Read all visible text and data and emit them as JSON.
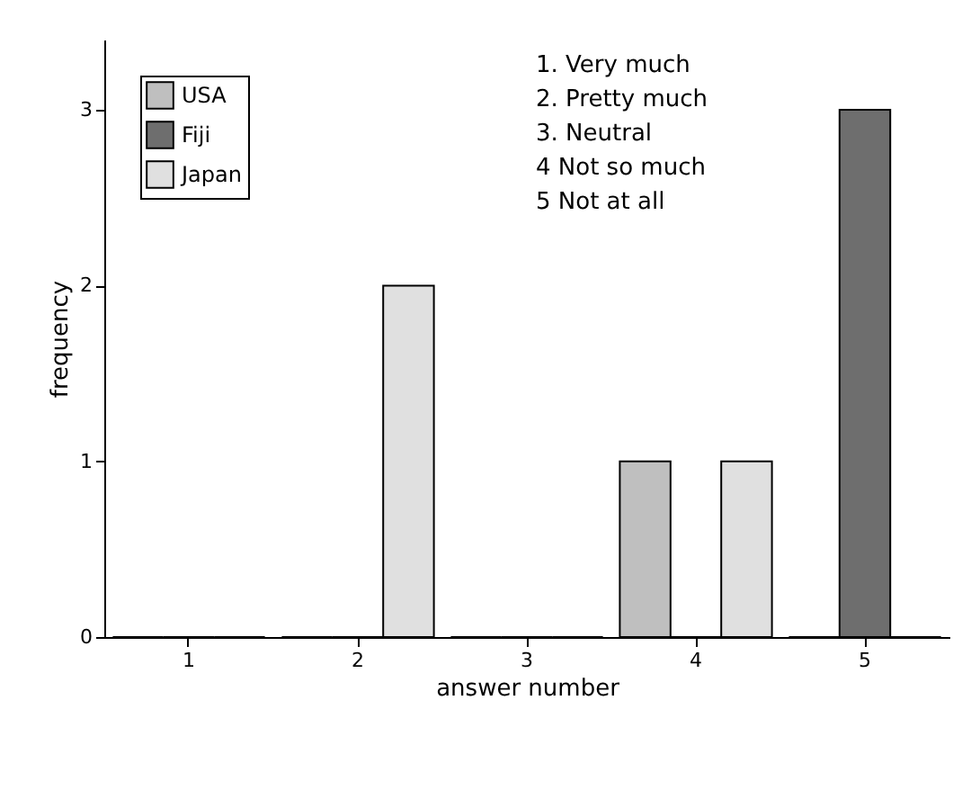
{
  "chart_data": {
    "type": "bar",
    "xlabel": "answer number",
    "ylabel": "frequency",
    "categories": [
      "1",
      "2",
      "3",
      "4",
      "5"
    ],
    "series": [
      {
        "name": "USA",
        "color": "#bfbfbf",
        "values": [
          0,
          0,
          0,
          1,
          0
        ]
      },
      {
        "name": "Fiji",
        "color": "#6e6e6e",
        "values": [
          0,
          0,
          0,
          0,
          3
        ]
      },
      {
        "name": "Japan",
        "color": "#e0e0e0",
        "values": [
          0,
          2,
          0,
          1,
          0
        ]
      }
    ],
    "ylim": [
      0,
      3.4
    ],
    "yticks": [
      0,
      1,
      2,
      3
    ],
    "grid": false,
    "legend": "top left",
    "annotations": [
      "1. Very much",
      "2. Pretty much",
      "3. Neutral",
      "4 Not so much",
      "5 Not at all"
    ]
  }
}
